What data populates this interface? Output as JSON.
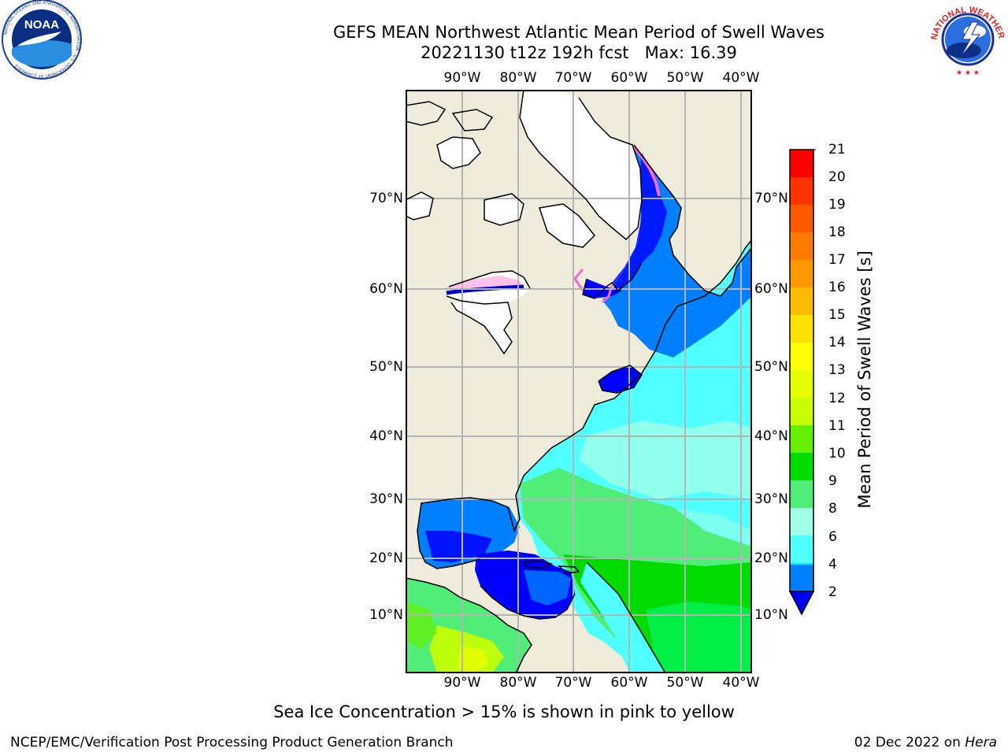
{
  "title": {
    "line1": "GEFS MEAN Northwest Atlantic Mean Period of Swell Waves",
    "line2": "20221130 t12z 192h fcst   Max: 16.39"
  },
  "logos": {
    "left": {
      "icon": "noaa-logo",
      "text": "NOAA",
      "ring_text": "NATIONAL OCEANIC AND ATMOSPHERIC ADMINISTRATION · U.S. DEPARTMENT OF COMMERCE"
    },
    "right": {
      "icon": "nws-logo",
      "ring_text": "NATIONAL WEATHER SERVICE"
    }
  },
  "map": {
    "longitude_labels": [
      "90°W",
      "80°W",
      "70°W",
      "60°W",
      "50°W",
      "40°W"
    ],
    "latitude_labels": [
      "70°N",
      "60°N",
      "50°N",
      "40°N",
      "30°N",
      "20°N",
      "10°N"
    ],
    "colors": {
      "land": "#efecdc",
      "ice_free_water_nodata": "#ffffff",
      "grid": "#b4b4b4",
      "coast": "#000000"
    }
  },
  "colorbar": {
    "label": "Mean Period of Swell Waves [s]",
    "ticks": [
      "21",
      "20",
      "19",
      "18",
      "17",
      "16",
      "15",
      "14",
      "13",
      "12",
      "11",
      "10",
      "9",
      "8",
      "6",
      "4",
      "2"
    ],
    "colors_top_to_bottom": [
      "#ff0000",
      "#ff3300",
      "#ff5a00",
      "#ff7a00",
      "#ff9900",
      "#ffbb00",
      "#ffe000",
      "#fbff00",
      "#e6ff00",
      "#c8ff00",
      "#64f000",
      "#00dc00",
      "#00ee46",
      "#50ee78",
      "#a0ffe6",
      "#50ffff",
      "#00f0ff",
      "#0080ff"
    ],
    "extend_color": "#0000ff"
  },
  "caption": "Sea Ice Concentration > 15% is shown in pink to yellow",
  "footer": {
    "left": "NCEP/EMC/Verification Post Processing Product Generation Branch",
    "right_prefix": "02 Dec 2022 on ",
    "right_italic": "Hera"
  }
}
